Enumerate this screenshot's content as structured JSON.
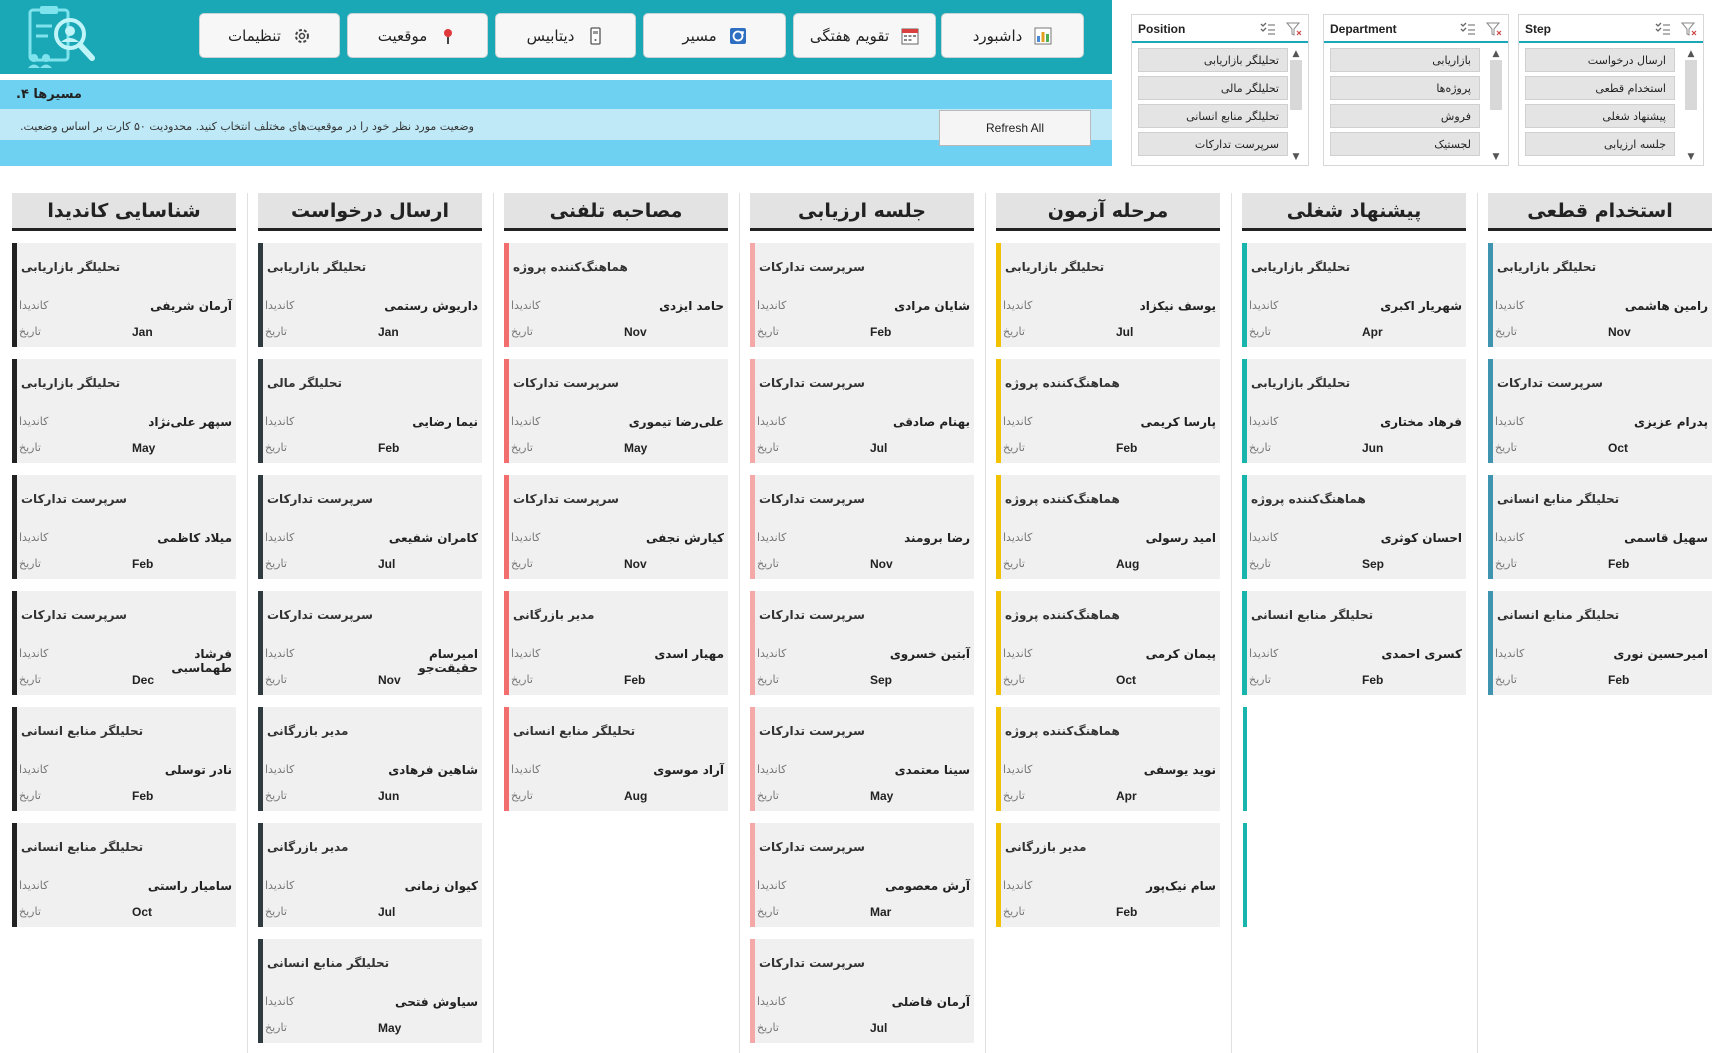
{
  "nav": {
    "buttons": [
      {
        "label": "تنظیمات",
        "icon": "gear-icon"
      },
      {
        "label": "موقعیت",
        "icon": "pin-icon"
      },
      {
        "label": "دیتابیس",
        "icon": "phone-icon"
      },
      {
        "label": "مسیر",
        "icon": "route-icon"
      },
      {
        "label": "تقویم هفتگی",
        "icon": "calendar-icon"
      },
      {
        "label": "داشبورد",
        "icon": "chart-icon"
      }
    ]
  },
  "info": {
    "title": "مسیرها ۴.",
    "description": "وضعیت مورد نظر خود را در موقعیت‌های مختلف انتخاب کنید. محدودیت ۵۰ کارت بر اساس وضعیت.",
    "refresh_label": "Refresh All"
  },
  "slicers": [
    {
      "title": "Position",
      "items": [
        "تحلیلگر بازاریابی",
        "تحلیلگر مالی",
        "تحلیلگر منابع انسانی",
        "سرپرست تدارکات"
      ]
    },
    {
      "title": "Department",
      "items": [
        "بازاریابی",
        "پروژه‌ها",
        "فروش",
        "لجستیک"
      ]
    },
    {
      "title": "Step",
      "items": [
        "ارسال درخواست",
        "استخدام قطعی",
        "پیشنهاد شغلی",
        "جلسه ارزیابی"
      ]
    }
  ],
  "labels": {
    "candidate": "کاندیدا",
    "date": "تاریخ"
  },
  "colors": {
    "primary": "#1aa7b6",
    "black": "#222222",
    "red": "#f26d6d",
    "pink": "#f5a8a8",
    "yellow": "#f2c200",
    "teal": "#17b5ab",
    "steel": "#3f95b0"
  },
  "columns": [
    {
      "title": "شناسایی کاندیدا",
      "color": "#222222",
      "empty_slots": 0,
      "cards": [
        {
          "position": "تحلیلگر بازاریابی",
          "name": "آرمان شریفی",
          "date": "Jan"
        },
        {
          "position": "تحلیلگر بازاریابی",
          "name": "سپهر علی‌نژاد",
          "date": "May"
        },
        {
          "position": "سرپرست تدارکات",
          "name": "میلاد کاظمی",
          "date": "Feb"
        },
        {
          "position": "سرپرست تدارکات",
          "name": "فرشاد طهماسبی",
          "date": "Dec"
        },
        {
          "position": "تحلیلگر منابع انسانی",
          "name": "نادر توسلی",
          "date": "Feb"
        },
        {
          "position": "تحلیلگر منابع انسانی",
          "name": "سامیار راستی",
          "date": "Oct"
        }
      ]
    },
    {
      "title": "ارسال درخواست",
      "color": "#2f3b3f",
      "empty_slots": 0,
      "cards": [
        {
          "position": "تحلیلگر بازاریابی",
          "name": "داریوش رستمی",
          "date": "Jan"
        },
        {
          "position": "تحلیلگر مالی",
          "name": "نیما رضایی",
          "date": "Feb"
        },
        {
          "position": "سرپرست تدارکات",
          "name": "کامران شفیعی",
          "date": "Jul"
        },
        {
          "position": "سرپرست تدارکات",
          "name": "امیرسام حقیقت‌جو",
          "date": "Nov"
        },
        {
          "position": "مدیر بازرگانی",
          "name": "شاهین فرهادی",
          "date": "Jun"
        },
        {
          "position": "مدیر بازرگانی",
          "name": "کیوان زمانی",
          "date": "Jul"
        },
        {
          "position": "تحلیلگر منابع انسانی",
          "name": "سیاوش فتحی",
          "date": "May"
        }
      ]
    },
    {
      "title": "مصاحبه تلفنی",
      "color": "#f26d6d",
      "empty_slots": 0,
      "cards": [
        {
          "position": "هماهنگ‌کننده پروژه",
          "name": "حامد ایزدی",
          "date": "Nov"
        },
        {
          "position": "سرپرست تدارکات",
          "name": "علی‌رضا تیموری",
          "date": "May"
        },
        {
          "position": "سرپرست تدارکات",
          "name": "کیارش نجفی",
          "date": "Nov"
        },
        {
          "position": "مدیر بازرگانی",
          "name": "مهیار اسدی",
          "date": "Feb"
        },
        {
          "position": "تحلیلگر منابع انسانی",
          "name": "آراد موسوی",
          "date": "Aug"
        }
      ]
    },
    {
      "title": "جلسه ارزیابی",
      "color": "#f5a8a8",
      "empty_slots": 0,
      "cards": [
        {
          "position": "سرپرست تدارکات",
          "name": "شایان مرادی",
          "date": "Feb"
        },
        {
          "position": "سرپرست تدارکات",
          "name": "بهنام صادقی",
          "date": "Jul"
        },
        {
          "position": "سرپرست تدارکات",
          "name": "رضا برومند",
          "date": "Nov"
        },
        {
          "position": "سرپرست تدارکات",
          "name": "آبتین خسروی",
          "date": "Sep"
        },
        {
          "position": "سرپرست تدارکات",
          "name": "سینا معتمدی",
          "date": "May"
        },
        {
          "position": "سرپرست تدارکات",
          "name": "آرش معصومی",
          "date": "Mar"
        },
        {
          "position": "سرپرست تدارکات",
          "name": "آرمان فاضلی",
          "date": "Jul"
        }
      ]
    },
    {
      "title": "مرحله آزمون",
      "color": "#f2c200",
      "empty_slots": 0,
      "cards": [
        {
          "position": "تحلیلگر بازاریابی",
          "name": "یوسف نیکزاد",
          "date": "Jul"
        },
        {
          "position": "هماهنگ‌کننده پروژه",
          "name": "پارسا کریمی",
          "date": "Feb"
        },
        {
          "position": "هماهنگ‌کننده پروژه",
          "name": "امید رسولی",
          "date": "Aug"
        },
        {
          "position": "هماهنگ‌کننده پروژه",
          "name": "پیمان کرمی",
          "date": "Oct"
        },
        {
          "position": "هماهنگ‌کننده پروژه",
          "name": "نوید یوسفی",
          "date": "Apr"
        },
        {
          "position": "مدیر بازرگانی",
          "name": "سام نیک‌پور",
          "date": "Feb"
        }
      ]
    },
    {
      "title": "پیشنهاد شغلی",
      "color": "#17b5ab",
      "empty_slots": 2,
      "cards": [
        {
          "position": "تحلیلگر بازاریابی",
          "name": "شهریار اکبری",
          "date": "Apr"
        },
        {
          "position": "تحلیلگر بازاریابی",
          "name": "فرهاد مختاری",
          "date": "Jun"
        },
        {
          "position": "هماهنگ‌کننده پروژه",
          "name": "احسان کوثری",
          "date": "Sep"
        },
        {
          "position": "تحلیلگر منابع انسانی",
          "name": "کسری احمدی",
          "date": "Feb"
        }
      ]
    },
    {
      "title": "استخدام قطعی",
      "color": "#3f95b0",
      "empty_slots": 0,
      "cards": [
        {
          "position": "تحلیلگر بازاریابی",
          "name": "رامین هاشمی",
          "date": "Nov"
        },
        {
          "position": "سرپرست تدارکات",
          "name": "پدرام عزیزی",
          "date": "Oct"
        },
        {
          "position": "تحلیلگر منابع انسانی",
          "name": "سهیل قاسمی",
          "date": "Feb"
        },
        {
          "position": "تحلیلگر منابع انسانی",
          "name": "امیرحسین نوری",
          "date": "Feb"
        }
      ]
    }
  ]
}
